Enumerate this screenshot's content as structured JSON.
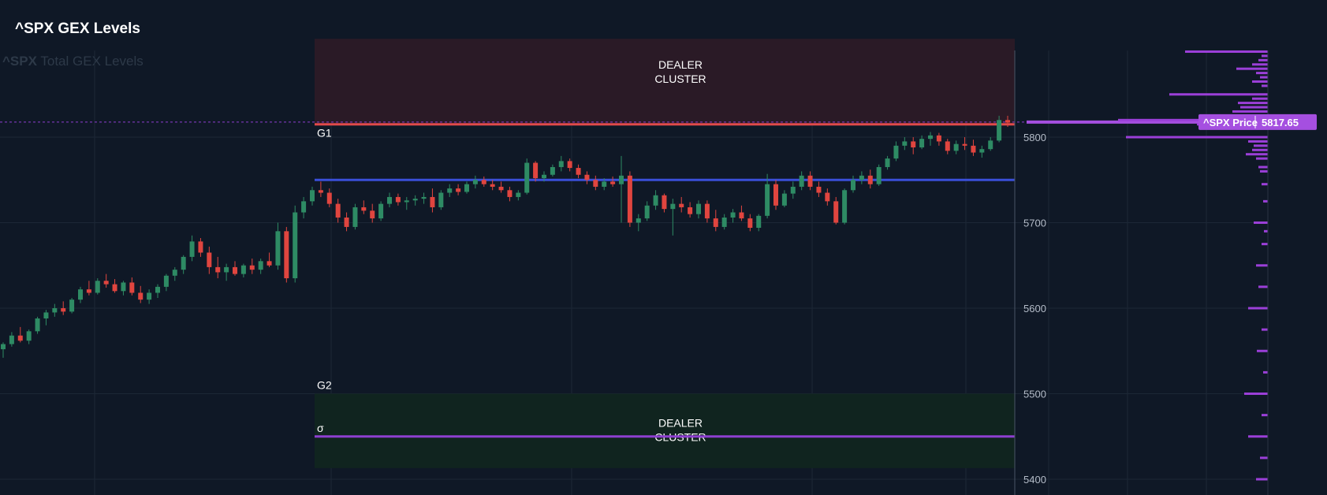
{
  "header": {
    "title": "^SPX GEX Levels",
    "watermark_ticker": "^SPX",
    "watermark_text": "Total GEX Levels"
  },
  "colors": {
    "background": "#0f1826",
    "up_candle": "#2e8b64",
    "down_candle": "#e0453f",
    "g1_line": "#e04a4a",
    "blue_level": "#3a4fd8",
    "sigma_line": "#8d3fd0",
    "gex_bar": "#9b3fd8",
    "upper_zone": "#2a1a26",
    "lower_zone": "#10241f"
  },
  "chart_data": {
    "type": "candlestick",
    "title": "^SPX GEX Levels",
    "y_axis": {
      "ticks": [
        5800,
        5700,
        5600,
        5500,
        5400
      ],
      "ylim": [
        5382,
        5900
      ],
      "side": "right"
    },
    "grid": true,
    "levels": [
      {
        "label": "G1",
        "value": 5815
      },
      {
        "label": "",
        "value": 5750
      },
      {
        "label": "G2",
        "value": 5500
      },
      {
        "label": "σ",
        "value": 5450
      }
    ],
    "zones": [
      {
        "label_line1": "DEALER",
        "label_line2": "CLUSTER",
        "from": 5815,
        "to": 5915
      },
      {
        "label_line1": "DEALER",
        "label_line2": "CLUSTER",
        "from": 5413,
        "to": 5500
      }
    ],
    "current_price": {
      "label": "^SPX Price",
      "value": "5817.65"
    },
    "candles": [
      [
        5552,
        5560,
        5542,
        5558
      ],
      [
        5558,
        5572,
        5555,
        5568
      ],
      [
        5568,
        5578,
        5560,
        5562
      ],
      [
        5562,
        5575,
        5558,
        5573
      ],
      [
        5573,
        5590,
        5570,
        5588
      ],
      [
        5588,
        5598,
        5580,
        5595
      ],
      [
        5595,
        5605,
        5590,
        5600
      ],
      [
        5600,
        5608,
        5592,
        5596
      ],
      [
        5596,
        5612,
        5594,
        5610
      ],
      [
        5610,
        5625,
        5606,
        5622
      ],
      [
        5622,
        5632,
        5615,
        5618
      ],
      [
        5618,
        5635,
        5616,
        5632
      ],
      [
        5632,
        5640,
        5624,
        5628
      ],
      [
        5628,
        5634,
        5618,
        5620
      ],
      [
        5620,
        5632,
        5615,
        5630
      ],
      [
        5630,
        5636,
        5615,
        5618
      ],
      [
        5618,
        5626,
        5606,
        5610
      ],
      [
        5610,
        5622,
        5605,
        5618
      ],
      [
        5618,
        5628,
        5612,
        5625
      ],
      [
        5625,
        5640,
        5620,
        5638
      ],
      [
        5638,
        5648,
        5632,
        5645
      ],
      [
        5645,
        5662,
        5640,
        5660
      ],
      [
        5660,
        5685,
        5655,
        5678
      ],
      [
        5678,
        5682,
        5660,
        5665
      ],
      [
        5665,
        5672,
        5640,
        5648
      ],
      [
        5648,
        5660,
        5635,
        5642
      ],
      [
        5642,
        5652,
        5632,
        5648
      ],
      [
        5648,
        5655,
        5638,
        5640
      ],
      [
        5640,
        5652,
        5636,
        5650
      ],
      [
        5650,
        5658,
        5640,
        5645
      ],
      [
        5645,
        5658,
        5640,
        5655
      ],
      [
        5655,
        5665,
        5648,
        5650
      ],
      [
        5650,
        5700,
        5645,
        5690
      ],
      [
        5690,
        5695,
        5630,
        5635
      ],
      [
        5635,
        5720,
        5630,
        5712
      ],
      [
        5712,
        5730,
        5705,
        5725
      ],
      [
        5725,
        5742,
        5720,
        5738
      ],
      [
        5738,
        5748,
        5730,
        5735
      ],
      [
        5735,
        5740,
        5718,
        5722
      ],
      [
        5722,
        5728,
        5700,
        5706
      ],
      [
        5706,
        5712,
        5690,
        5695
      ],
      [
        5695,
        5722,
        5692,
        5718
      ],
      [
        5718,
        5726,
        5710,
        5714
      ],
      [
        5714,
        5722,
        5700,
        5705
      ],
      [
        5705,
        5725,
        5702,
        5722
      ],
      [
        5722,
        5735,
        5718,
        5730
      ],
      [
        5730,
        5734,
        5720,
        5724
      ],
      [
        5724,
        5730,
        5715,
        5726
      ],
      [
        5726,
        5732,
        5720,
        5728
      ],
      [
        5728,
        5735,
        5722,
        5730
      ],
      [
        5730,
        5740,
        5712,
        5718
      ],
      [
        5718,
        5738,
        5715,
        5735
      ],
      [
        5735,
        5745,
        5730,
        5740
      ],
      [
        5740,
        5745,
        5732,
        5736
      ],
      [
        5736,
        5748,
        5734,
        5745
      ],
      [
        5745,
        5755,
        5740,
        5750
      ],
      [
        5750,
        5754,
        5742,
        5745
      ],
      [
        5745,
        5750,
        5738,
        5742
      ],
      [
        5742,
        5748,
        5735,
        5738
      ],
      [
        5738,
        5742,
        5725,
        5730
      ],
      [
        5730,
        5738,
        5726,
        5735
      ],
      [
        5735,
        5775,
        5733,
        5770
      ],
      [
        5770,
        5772,
        5748,
        5752
      ],
      [
        5752,
        5760,
        5748,
        5756
      ],
      [
        5756,
        5768,
        5754,
        5765
      ],
      [
        5765,
        5778,
        5760,
        5772
      ],
      [
        5772,
        5775,
        5760,
        5764
      ],
      [
        5764,
        5768,
        5752,
        5756
      ],
      [
        5756,
        5760,
        5745,
        5750
      ],
      [
        5750,
        5755,
        5738,
        5742
      ],
      [
        5742,
        5752,
        5738,
        5748
      ],
      [
        5748,
        5754,
        5742,
        5745
      ],
      [
        5745,
        5778,
        5700,
        5755
      ],
      [
        5755,
        5760,
        5695,
        5700
      ],
      [
        5700,
        5710,
        5690,
        5705
      ],
      [
        5705,
        5725,
        5702,
        5720
      ],
      [
        5720,
        5738,
        5715,
        5732
      ],
      [
        5732,
        5734,
        5712,
        5716
      ],
      [
        5716,
        5728,
        5685,
        5722
      ],
      [
        5722,
        5730,
        5712,
        5718
      ],
      [
        5718,
        5724,
        5706,
        5710
      ],
      [
        5710,
        5726,
        5705,
        5722
      ],
      [
        5722,
        5726,
        5700,
        5705
      ],
      [
        5705,
        5715,
        5690,
        5695
      ],
      [
        5695,
        5710,
        5692,
        5706
      ],
      [
        5706,
        5716,
        5700,
        5712
      ],
      [
        5712,
        5720,
        5702,
        5705
      ],
      [
        5705,
        5710,
        5690,
        5694
      ],
      [
        5694,
        5710,
        5690,
        5708
      ],
      [
        5708,
        5757,
        5705,
        5745
      ],
      [
        5745,
        5750,
        5715,
        5720
      ],
      [
        5720,
        5738,
        5718,
        5734
      ],
      [
        5734,
        5748,
        5728,
        5742
      ],
      [
        5742,
        5760,
        5738,
        5755
      ],
      [
        5755,
        5760,
        5738,
        5742
      ],
      [
        5742,
        5748,
        5730,
        5735
      ],
      [
        5735,
        5740,
        5720,
        5725
      ],
      [
        5725,
        5730,
        5698,
        5700
      ],
      [
        5700,
        5740,
        5698,
        5738
      ],
      [
        5738,
        5755,
        5735,
        5750
      ],
      [
        5750,
        5760,
        5745,
        5755
      ],
      [
        5755,
        5762,
        5740,
        5745
      ],
      [
        5745,
        5768,
        5743,
        5765
      ],
      [
        5765,
        5778,
        5762,
        5775
      ],
      [
        5775,
        5795,
        5772,
        5790
      ],
      [
        5790,
        5800,
        5785,
        5795
      ],
      [
        5795,
        5800,
        5780,
        5788
      ],
      [
        5788,
        5802,
        5786,
        5798
      ],
      [
        5798,
        5806,
        5790,
        5802
      ],
      [
        5802,
        5805,
        5790,
        5795
      ],
      [
        5795,
        5798,
        5780,
        5784
      ],
      [
        5784,
        5796,
        5780,
        5792
      ],
      [
        5792,
        5800,
        5785,
        5790
      ],
      [
        5790,
        5797,
        5778,
        5782
      ],
      [
        5782,
        5790,
        5776,
        5786
      ],
      [
        5786,
        5800,
        5784,
        5796
      ],
      [
        5796,
        5825,
        5794,
        5820
      ],
      [
        5820,
        5825,
        5812,
        5817
      ]
    ]
  }
}
